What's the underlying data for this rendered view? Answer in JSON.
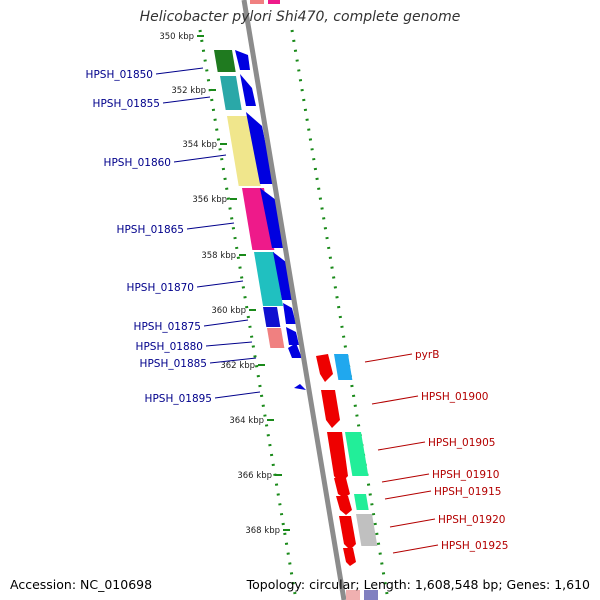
{
  "title": "Helicobacter pylori Shi470, complete genome",
  "footer": {
    "accession": "Accession: NC_010698",
    "stats": "Topology: circular; Length: 1,608,548 bp; Genes: 1,610"
  },
  "colors": {
    "backbone": "#8c8c8c",
    "ticks": "#1a8a1a",
    "reverse_label": "#00008b",
    "forward_label": "#b30000"
  },
  "ticks": [
    {
      "label": "350 kbp"
    },
    {
      "label": "352 kbp"
    },
    {
      "label": "354 kbp"
    },
    {
      "label": "356 kbp"
    },
    {
      "label": "358 kbp"
    },
    {
      "label": "360 kbp"
    },
    {
      "label": "362 kbp"
    },
    {
      "label": "364 kbp"
    },
    {
      "label": "366 kbp"
    },
    {
      "label": "368 kbp"
    }
  ],
  "genes_reverse": [
    {
      "label": "HPSH_01850"
    },
    {
      "label": "HPSH_01855"
    },
    {
      "label": "HPSH_01860"
    },
    {
      "label": "HPSH_01865"
    },
    {
      "label": "HPSH_01870"
    },
    {
      "label": "HPSH_01875"
    },
    {
      "label": "HPSH_01880"
    },
    {
      "label": "HPSH_01885"
    },
    {
      "label": "HPSH_01895"
    }
  ],
  "genes_forward": [
    {
      "label": "pyrB"
    },
    {
      "label": "HPSH_01900"
    },
    {
      "label": "HPSH_01905"
    },
    {
      "label": "HPSH_01910"
    },
    {
      "label": "HPSH_01915"
    },
    {
      "label": "HPSH_01920"
    },
    {
      "label": "HPSH_01925"
    }
  ]
}
